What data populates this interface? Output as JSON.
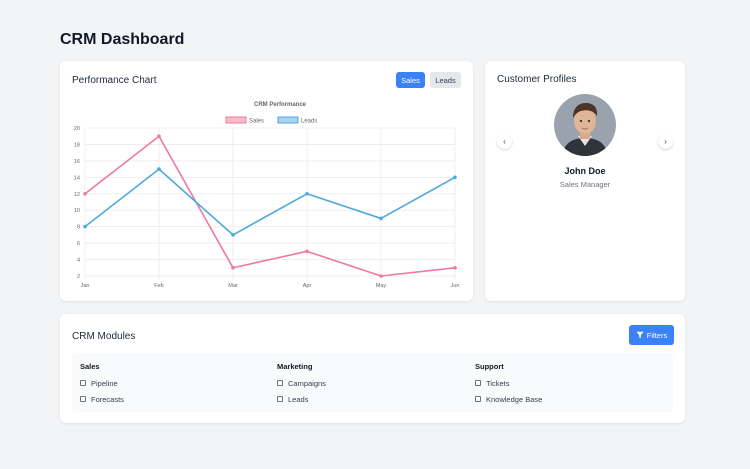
{
  "page": {
    "title": "CRM Dashboard"
  },
  "performance": {
    "title": "Performance Chart",
    "toggle_sales": "Sales",
    "toggle_leads": "Leads"
  },
  "chart_data": {
    "type": "line",
    "title": "CRM Performance",
    "categories": [
      "Jan",
      "Feb",
      "Mar",
      "Apr",
      "May",
      "Jun"
    ],
    "series": [
      {
        "name": "Sales",
        "values": [
          12,
          19,
          3,
          5,
          2,
          3
        ],
        "color": "#f0799a"
      },
      {
        "name": "Leads",
        "values": [
          8,
          15,
          7,
          12,
          9,
          14
        ],
        "color": "#4fa9dd"
      }
    ],
    "yticks": [
      2,
      4,
      6,
      8,
      10,
      12,
      14,
      16,
      18,
      20
    ],
    "ylim": [
      2,
      20
    ],
    "legend_position": "top",
    "grid": true
  },
  "profiles": {
    "title": "Customer Profiles",
    "prev_icon": "‹",
    "next_icon": "›",
    "name": "John Doe",
    "role": "Sales Manager"
  },
  "modules": {
    "title": "CRM Modules",
    "filters_label": "Filters",
    "groups": [
      {
        "heading": "Sales",
        "items": [
          "Pipeline",
          "Forecasts"
        ]
      },
      {
        "heading": "Marketing",
        "items": [
          "Campaigns",
          "Leads"
        ]
      },
      {
        "heading": "Support",
        "items": [
          "Tickets",
          "Knowledge Base"
        ]
      }
    ]
  }
}
